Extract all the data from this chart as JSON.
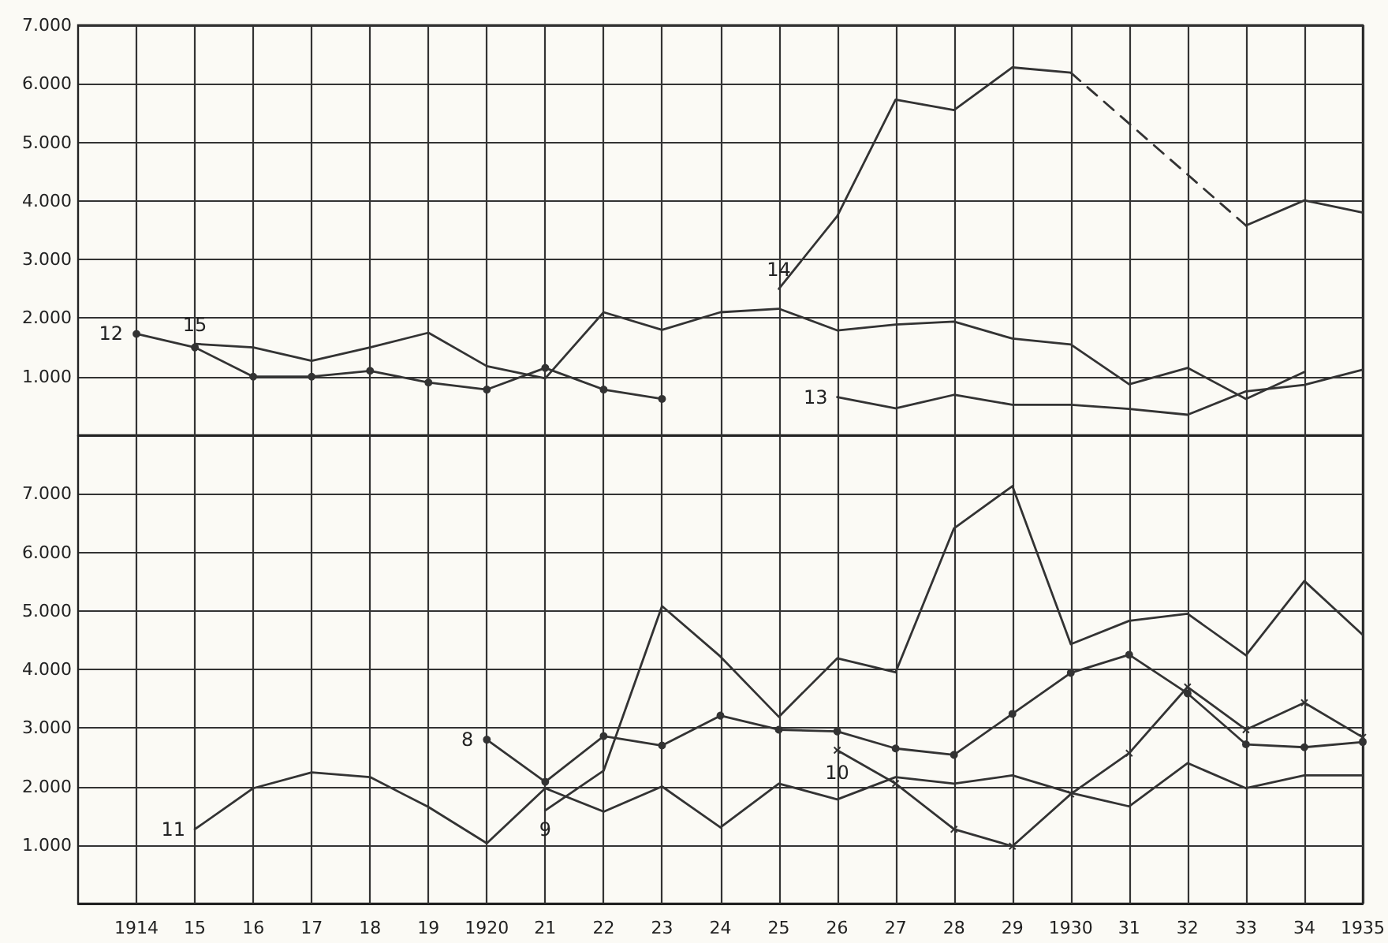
{
  "chart_data": [
    {
      "type": "line",
      "xlim": [
        1913,
        1935
      ],
      "ylim": [
        0,
        7000
      ],
      "grid": true,
      "tick_labels": "y",
      "marker": "none",
      "line_style": "solid",
      "xticks": [
        {
          "value": 1914,
          "label": null
        },
        {
          "value": 1915,
          "label": null
        },
        {
          "value": 1916,
          "label": null
        },
        {
          "value": 1917,
          "label": null
        },
        {
          "value": 1918,
          "label": null
        },
        {
          "value": 1919,
          "label": null
        },
        {
          "value": 1920,
          "label": null
        },
        {
          "value": 1921,
          "label": null
        },
        {
          "value": 1922,
          "label": null
        },
        {
          "value": 1923,
          "label": null
        },
        {
          "value": 1924,
          "label": null
        },
        {
          "value": 1925,
          "label": null
        },
        {
          "value": 1926,
          "label": null
        },
        {
          "value": 1927,
          "label": null
        },
        {
          "value": 1928,
          "label": null
        },
        {
          "value": 1929,
          "label": null
        },
        {
          "value": 1930,
          "label": null
        },
        {
          "value": 1931,
          "label": null
        },
        {
          "value": 1932,
          "label": null
        },
        {
          "value": 1933,
          "label": null
        },
        {
          "value": 1934,
          "label": null
        },
        {
          "value": 1935,
          "label": null
        }
      ],
      "yticks": [
        {
          "value": 1000,
          "label": "1.000"
        },
        {
          "value": 2000,
          "label": "2.000"
        },
        {
          "value": 3000,
          "label": "3.000"
        },
        {
          "value": 4000,
          "label": "4.000"
        },
        {
          "value": 5000,
          "label": "5.000"
        },
        {
          "value": 6000,
          "label": "6.000"
        },
        {
          "value": 7000,
          "label": "7.000"
        }
      ],
      "series": [
        {
          "name": "15",
          "color": "#333333",
          "x": [
            1915,
            1916,
            1917,
            1918,
            1919,
            1920,
            1921,
            1922,
            1923,
            1924,
            1925,
            1926,
            1927,
            1928,
            1929,
            1930,
            1931,
            1932,
            1933,
            1934
          ],
          "values": [
            1560,
            1500,
            1270,
            1500,
            1750,
            1180,
            970,
            2100,
            1800,
            2100,
            2160,
            1790,
            1890,
            1940,
            1650,
            1550,
            870,
            1150,
            620,
            1080
          ]
        },
        {
          "name": "12",
          "color": "#333333",
          "marker": "circle",
          "x": [
            1914,
            1915,
            1916,
            1917,
            1918,
            1919,
            1920,
            1921,
            1922,
            1923
          ],
          "values": [
            1730,
            1500,
            1000,
            1000,
            1100,
            900,
            780,
            1150,
            780,
            620
          ]
        },
        {
          "name": "13",
          "color": "#333333",
          "x": [
            1926,
            1927,
            1928,
            1929,
            1930,
            1931,
            1932,
            1933,
            1934,
            1935
          ],
          "values": [
            650,
            460,
            690,
            520,
            520,
            450,
            350,
            750,
            860,
            1120
          ]
        },
        {
          "name": "14",
          "color": "#333333",
          "x": [
            1925,
            1926,
            1927,
            1928,
            1929,
            1930
          ],
          "values": [
            2500,
            3740,
            5730,
            5550,
            6280,
            6190
          ]
        },
        {
          "color": "#333333",
          "line_style": "dashed",
          "x": [
            1930,
            1933
          ],
          "values": [
            6190,
            3580
          ]
        },
        {
          "color": "#333333",
          "x": [
            1933,
            1934,
            1935
          ],
          "values": [
            3580,
            4010,
            3800
          ]
        }
      ]
    },
    {
      "type": "line",
      "xlim": [
        1913,
        1935
      ],
      "ylim": [
        0,
        8000
      ],
      "grid": true,
      "marker": "none",
      "line_style": "solid",
      "xticks": [
        {
          "value": 1914,
          "label": "1914"
        },
        {
          "value": 1915,
          "label": "15"
        },
        {
          "value": 1916,
          "label": "16"
        },
        {
          "value": 1917,
          "label": "17"
        },
        {
          "value": 1918,
          "label": "18"
        },
        {
          "value": 1919,
          "label": "19"
        },
        {
          "value": 1920,
          "label": "1920"
        },
        {
          "value": 1921,
          "label": "21"
        },
        {
          "value": 1922,
          "label": "22"
        },
        {
          "value": 1923,
          "label": "23"
        },
        {
          "value": 1924,
          "label": "24"
        },
        {
          "value": 1925,
          "label": "25"
        },
        {
          "value": 1926,
          "label": "26"
        },
        {
          "value": 1927,
          "label": "27"
        },
        {
          "value": 1928,
          "label": "28"
        },
        {
          "value": 1929,
          "label": "29"
        },
        {
          "value": 1930,
          "label": "1930"
        },
        {
          "value": 1931,
          "label": "31"
        },
        {
          "value": 1932,
          "label": "32"
        },
        {
          "value": 1933,
          "label": "33"
        },
        {
          "value": 1934,
          "label": "34"
        },
        {
          "value": 1935,
          "label": "1935"
        }
      ],
      "yticks": [
        {
          "value": 1000,
          "label": "1.000"
        },
        {
          "value": 2000,
          "label": "2.000"
        },
        {
          "value": 3000,
          "label": "3.000"
        },
        {
          "value": 4000,
          "label": "4.000"
        },
        {
          "value": 5000,
          "label": "5.000"
        },
        {
          "value": 6000,
          "label": "6.000"
        },
        {
          "value": 7000,
          "label": "7.000"
        }
      ],
      "series": [
        {
          "name": "11",
          "color": "#333333",
          "x": [
            1915,
            1916,
            1917,
            1918,
            1919,
            1920,
            1921,
            1922,
            1923,
            1924,
            1925,
            1926,
            1927,
            1928,
            1929,
            1930,
            1931,
            1932,
            1933,
            1934,
            1935
          ],
          "values": [
            1270,
            1970,
            2240,
            2160,
            1650,
            1030,
            1970,
            1570,
            2000,
            1300,
            2050,
            1780,
            2160,
            2050,
            2190,
            1890,
            1660,
            2400,
            1970,
            2190,
            2190
          ]
        },
        {
          "name": "8",
          "color": "#333333",
          "marker": "circle",
          "x": [
            1920,
            1921,
            1922,
            1923,
            1924,
            1925,
            1926,
            1927,
            1928,
            1929,
            1930,
            1931,
            1932,
            1933,
            1934,
            1935
          ],
          "values": [
            2800,
            2080,
            2860,
            2700,
            3210,
            2970,
            2940,
            2650,
            2540,
            3240,
            3940,
            4250,
            3590,
            2720,
            2670,
            2760
          ]
        },
        {
          "name": "9",
          "color": "#333333",
          "x": [
            1921,
            1922,
            1923,
            1924,
            1925,
            1926,
            1927,
            1928,
            1929,
            1930,
            1931,
            1932,
            1933,
            1934,
            1935
          ],
          "values": [
            1590,
            2270,
            5080,
            4220,
            3190,
            4190,
            3950,
            6410,
            7130,
            4430,
            4830,
            4950,
            4240,
            5510,
            4590
          ]
        },
        {
          "name": "10",
          "color": "#333333",
          "marker": "cross",
          "x": [
            1926,
            1927,
            1928,
            1929,
            1930,
            1931,
            1932,
            1933,
            1934,
            1935
          ],
          "values": [
            2620,
            2050,
            1270,
            980,
            1870,
            2570,
            3700,
            2970,
            3430,
            2840
          ]
        }
      ]
    }
  ]
}
